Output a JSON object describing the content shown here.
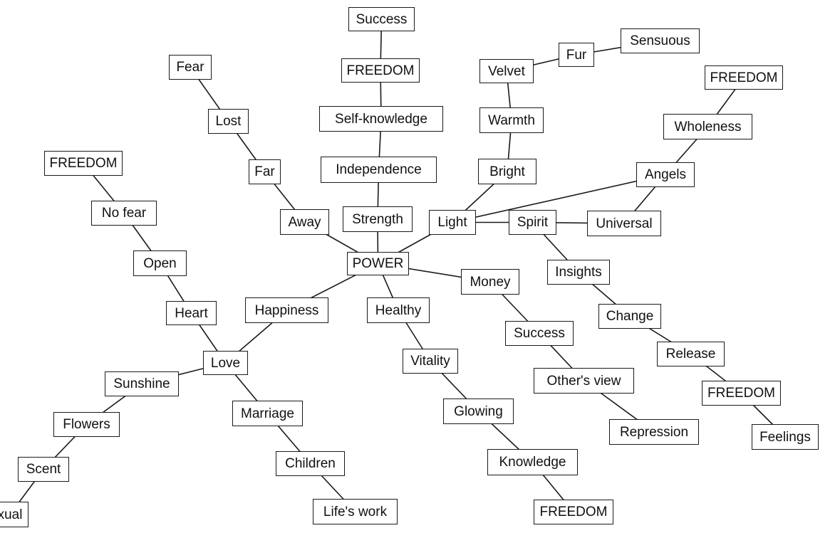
{
  "diagram": {
    "nodes": [
      {
        "id": "success_top",
        "label": "Success"
      },
      {
        "id": "freedom_top",
        "label": "FREEDOM"
      },
      {
        "id": "self_knowledge",
        "label": "Self-knowledge"
      },
      {
        "id": "independence",
        "label": "Independence"
      },
      {
        "id": "strength",
        "label": "Strength"
      },
      {
        "id": "power",
        "label": "POWER"
      },
      {
        "id": "fear",
        "label": "Fear"
      },
      {
        "id": "lost",
        "label": "Lost"
      },
      {
        "id": "far",
        "label": "Far"
      },
      {
        "id": "away",
        "label": "Away"
      },
      {
        "id": "freedom_left",
        "label": "FREEDOM"
      },
      {
        "id": "no_fear",
        "label": "No fear"
      },
      {
        "id": "open",
        "label": "Open"
      },
      {
        "id": "heart",
        "label": "Heart"
      },
      {
        "id": "love",
        "label": "Love"
      },
      {
        "id": "happiness",
        "label": "Happiness"
      },
      {
        "id": "sunshine",
        "label": "Sunshine"
      },
      {
        "id": "flowers",
        "label": "Flowers"
      },
      {
        "id": "scent",
        "label": "Scent"
      },
      {
        "id": "sexual",
        "label": "xual"
      },
      {
        "id": "marriage",
        "label": "Marriage"
      },
      {
        "id": "children",
        "label": "Children"
      },
      {
        "id": "lifes_work",
        "label": "Life's work"
      },
      {
        "id": "healthy",
        "label": "Healthy"
      },
      {
        "id": "vitality",
        "label": "Vitality"
      },
      {
        "id": "glowing",
        "label": "Glowing"
      },
      {
        "id": "knowledge",
        "label": "Knowledge"
      },
      {
        "id": "freedom_bottom",
        "label": "FREEDOM"
      },
      {
        "id": "money",
        "label": "Money"
      },
      {
        "id": "success_mid",
        "label": "Success"
      },
      {
        "id": "others_view",
        "label": "Other's view"
      },
      {
        "id": "repression",
        "label": "Repression"
      },
      {
        "id": "light",
        "label": "Light"
      },
      {
        "id": "bright",
        "label": "Bright"
      },
      {
        "id": "warmth",
        "label": "Warmth"
      },
      {
        "id": "velvet",
        "label": "Velvet"
      },
      {
        "id": "fur",
        "label": "Fur"
      },
      {
        "id": "sensuous",
        "label": "Sensuous"
      },
      {
        "id": "spirit",
        "label": "Spirit"
      },
      {
        "id": "universal",
        "label": "Universal"
      },
      {
        "id": "angels",
        "label": "Angels"
      },
      {
        "id": "wholeness",
        "label": "Wholeness"
      },
      {
        "id": "freedom_right_top",
        "label": "FREEDOM"
      },
      {
        "id": "insights",
        "label": "Insights"
      },
      {
        "id": "change",
        "label": "Change"
      },
      {
        "id": "release",
        "label": "Release"
      },
      {
        "id": "freedom_right",
        "label": "FREEDOM"
      },
      {
        "id": "feelings",
        "label": "Feelings"
      }
    ],
    "edges": [
      [
        "success_top",
        "freedom_top"
      ],
      [
        "freedom_top",
        "self_knowledge"
      ],
      [
        "self_knowledge",
        "independence"
      ],
      [
        "independence",
        "strength"
      ],
      [
        "strength",
        "power"
      ],
      [
        "fear",
        "lost"
      ],
      [
        "lost",
        "far"
      ],
      [
        "far",
        "away"
      ],
      [
        "away",
        "power"
      ],
      [
        "freedom_left",
        "no_fear"
      ],
      [
        "no_fear",
        "open"
      ],
      [
        "open",
        "heart"
      ],
      [
        "heart",
        "love"
      ],
      [
        "love",
        "happiness"
      ],
      [
        "happiness",
        "power"
      ],
      [
        "love",
        "sunshine"
      ],
      [
        "sunshine",
        "flowers"
      ],
      [
        "flowers",
        "scent"
      ],
      [
        "scent",
        "sexual"
      ],
      [
        "love",
        "marriage"
      ],
      [
        "marriage",
        "children"
      ],
      [
        "children",
        "lifes_work"
      ],
      [
        "power",
        "healthy"
      ],
      [
        "healthy",
        "vitality"
      ],
      [
        "vitality",
        "glowing"
      ],
      [
        "glowing",
        "knowledge"
      ],
      [
        "knowledge",
        "freedom_bottom"
      ],
      [
        "power",
        "money"
      ],
      [
        "money",
        "success_mid"
      ],
      [
        "success_mid",
        "others_view"
      ],
      [
        "others_view",
        "repression"
      ],
      [
        "power",
        "light"
      ],
      [
        "light",
        "bright"
      ],
      [
        "bright",
        "warmth"
      ],
      [
        "warmth",
        "velvet"
      ],
      [
        "velvet",
        "fur"
      ],
      [
        "fur",
        "sensuous"
      ],
      [
        "light",
        "angels"
      ],
      [
        "light",
        "spirit"
      ],
      [
        "spirit",
        "universal"
      ],
      [
        "universal",
        "angels"
      ],
      [
        "angels",
        "wholeness"
      ],
      [
        "wholeness",
        "freedom_right_top"
      ],
      [
        "spirit",
        "insights"
      ],
      [
        "insights",
        "change"
      ],
      [
        "change",
        "release"
      ],
      [
        "release",
        "freedom_right"
      ],
      [
        "freedom_right",
        "feelings"
      ]
    ]
  }
}
